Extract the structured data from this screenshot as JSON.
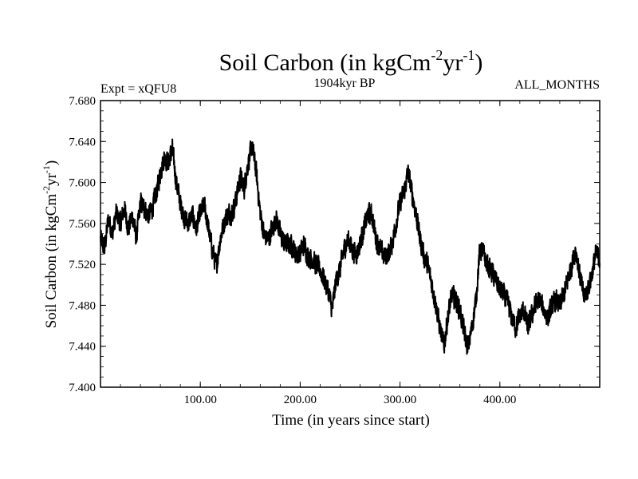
{
  "chart_data": {
    "type": "line",
    "title": {
      "main": "Soil Carbon (in kgCm",
      "sup1": "-2",
      "mid": "yr",
      "sup2": "-1",
      "end": ")"
    },
    "subtitle_left": "Expt = xQFU8",
    "subtitle_center": "1904kyr BP",
    "subtitle_right": "ALL_MONTHS",
    "xlabel": "Time (in years since start)",
    "ylabel": {
      "main": "Soil Carbon (in kgCm",
      "sup1": "-2",
      "mid": "yr",
      "sup2": "-1",
      "end": ")"
    },
    "xlim": [
      0,
      500
    ],
    "ylim": [
      7.4,
      7.68
    ],
    "xticks": [
      {
        "value": 100,
        "label": "100.00"
      },
      {
        "value": 200,
        "label": "200.00"
      },
      {
        "value": 300,
        "label": "300.00"
      },
      {
        "value": 400,
        "label": "400.00"
      }
    ],
    "yticks": [
      {
        "value": 7.4,
        "label": "7.400"
      },
      {
        "value": 7.44,
        "label": "7.440"
      },
      {
        "value": 7.48,
        "label": "7.480"
      },
      {
        "value": 7.52,
        "label": "7.520"
      },
      {
        "value": 7.56,
        "label": "7.560"
      },
      {
        "value": 7.6,
        "label": "7.600"
      },
      {
        "value": 7.64,
        "label": "7.640"
      },
      {
        "value": 7.68,
        "label": "7.680"
      }
    ],
    "series": [
      {
        "name": "Soil Carbon",
        "color": "#000000",
        "noise_amplitude": 0.009,
        "samples_per_year": 6,
        "points": [
          [
            0,
            7.545
          ],
          [
            4,
            7.535
          ],
          [
            8,
            7.565
          ],
          [
            12,
            7.55
          ],
          [
            16,
            7.57
          ],
          [
            20,
            7.56
          ],
          [
            24,
            7.575
          ],
          [
            28,
            7.555
          ],
          [
            32,
            7.568
          ],
          [
            36,
            7.545
          ],
          [
            40,
            7.58
          ],
          [
            44,
            7.575
          ],
          [
            48,
            7.568
          ],
          [
            52,
            7.575
          ],
          [
            56,
            7.59
          ],
          [
            60,
            7.61
          ],
          [
            64,
            7.625
          ],
          [
            68,
            7.62
          ],
          [
            72,
            7.632
          ],
          [
            76,
            7.6
          ],
          [
            80,
            7.58
          ],
          [
            84,
            7.565
          ],
          [
            88,
            7.56
          ],
          [
            92,
            7.568
          ],
          [
            96,
            7.555
          ],
          [
            100,
            7.57
          ],
          [
            104,
            7.578
          ],
          [
            108,
            7.555
          ],
          [
            112,
            7.535
          ],
          [
            116,
            7.518
          ],
          [
            120,
            7.545
          ],
          [
            124,
            7.562
          ],
          [
            128,
            7.57
          ],
          [
            132,
            7.57
          ],
          [
            136,
            7.585
          ],
          [
            140,
            7.605
          ],
          [
            144,
            7.595
          ],
          [
            148,
            7.62
          ],
          [
            152,
            7.635
          ],
          [
            156,
            7.61
          ],
          [
            160,
            7.57
          ],
          [
            164,
            7.548
          ],
          [
            168,
            7.545
          ],
          [
            172,
            7.555
          ],
          [
            176,
            7.565
          ],
          [
            180,
            7.55
          ],
          [
            184,
            7.54
          ],
          [
            188,
            7.54
          ],
          [
            192,
            7.538
          ],
          [
            196,
            7.53
          ],
          [
            200,
            7.53
          ],
          [
            204,
            7.54
          ],
          [
            208,
            7.528
          ],
          [
            212,
            7.525
          ],
          [
            216,
            7.52
          ],
          [
            220,
            7.515
          ],
          [
            224,
            7.505
          ],
          [
            228,
            7.495
          ],
          [
            232,
            7.475
          ],
          [
            236,
            7.505
          ],
          [
            240,
            7.515
          ],
          [
            244,
            7.535
          ],
          [
            248,
            7.545
          ],
          [
            252,
            7.535
          ],
          [
            256,
            7.53
          ],
          [
            260,
            7.54
          ],
          [
            264,
            7.555
          ],
          [
            268,
            7.57
          ],
          [
            272,
            7.568
          ],
          [
            276,
            7.545
          ],
          [
            280,
            7.535
          ],
          [
            284,
            7.528
          ],
          [
            288,
            7.53
          ],
          [
            292,
            7.54
          ],
          [
            296,
            7.56
          ],
          [
            300,
            7.58
          ],
          [
            304,
            7.59
          ],
          [
            308,
            7.61
          ],
          [
            312,
            7.59
          ],
          [
            316,
            7.57
          ],
          [
            320,
            7.545
          ],
          [
            324,
            7.528
          ],
          [
            328,
            7.518
          ],
          [
            332,
            7.5
          ],
          [
            336,
            7.48
          ],
          [
            340,
            7.458
          ],
          [
            344,
            7.44
          ],
          [
            348,
            7.47
          ],
          [
            352,
            7.49
          ],
          [
            356,
            7.485
          ],
          [
            360,
            7.475
          ],
          [
            364,
            7.455
          ],
          [
            368,
            7.438
          ],
          [
            372,
            7.458
          ],
          [
            376,
            7.485
          ],
          [
            380,
            7.535
          ],
          [
            384,
            7.53
          ],
          [
            388,
            7.518
          ],
          [
            392,
            7.512
          ],
          [
            396,
            7.505
          ],
          [
            400,
            7.495
          ],
          [
            404,
            7.49
          ],
          [
            408,
            7.482
          ],
          [
            412,
            7.468
          ],
          [
            416,
            7.458
          ],
          [
            420,
            7.47
          ],
          [
            424,
            7.475
          ],
          [
            428,
            7.458
          ],
          [
            432,
            7.47
          ],
          [
            436,
            7.482
          ],
          [
            440,
            7.485
          ],
          [
            444,
            7.475
          ],
          [
            448,
            7.468
          ],
          [
            452,
            7.478
          ],
          [
            456,
            7.485
          ],
          [
            460,
            7.48
          ],
          [
            464,
            7.49
          ],
          [
            468,
            7.505
          ],
          [
            472,
            7.52
          ],
          [
            476,
            7.535
          ],
          [
            480,
            7.51
          ],
          [
            484,
            7.488
          ],
          [
            488,
            7.495
          ],
          [
            492,
            7.51
          ],
          [
            496,
            7.53
          ],
          [
            500,
            7.525
          ]
        ]
      }
    ]
  }
}
